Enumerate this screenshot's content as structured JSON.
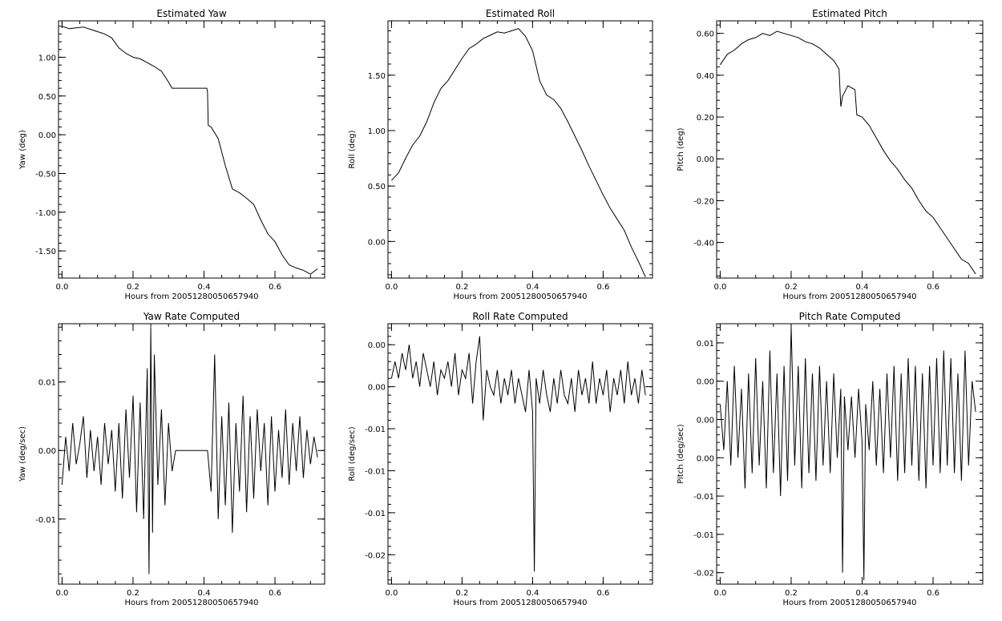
{
  "chart_data": [
    {
      "type": "line",
      "title": "Estimated Yaw",
      "xlabel": "Hours from 20051280050657940",
      "ylabel": "Yaw (deg)",
      "xlim": [
        -0.01,
        0.74
      ],
      "ylim": [
        -1.85,
        1.47
      ],
      "xticks": [
        0.0,
        0.2,
        0.4,
        0.6
      ],
      "xtick_labels": [
        "0.0",
        "0.2",
        "0.4",
        "0.6"
      ],
      "yticks": [
        -1.5,
        -1.0,
        -0.5,
        0.0,
        0.5,
        1.0
      ],
      "ytick_labels": [
        "-1.50",
        "-1.00",
        "-0.50",
        "0.00",
        "0.50",
        "1.00"
      ],
      "series": [
        {
          "x": [
            0.0,
            0.02,
            0.04,
            0.06,
            0.08,
            0.1,
            0.12,
            0.14,
            0.16,
            0.18,
            0.2,
            0.22,
            0.24,
            0.26,
            0.28,
            0.3,
            0.31,
            0.32,
            0.34,
            0.36,
            0.38,
            0.4,
            0.408,
            0.41,
            0.412,
            0.42,
            0.44,
            0.46,
            0.48,
            0.5,
            0.52,
            0.54,
            0.56,
            0.58,
            0.6,
            0.62,
            0.64,
            0.66,
            0.68,
            0.7,
            0.72
          ],
          "y": [
            1.4,
            1.37,
            1.38,
            1.39,
            1.36,
            1.33,
            1.3,
            1.25,
            1.12,
            1.05,
            1.0,
            0.98,
            0.93,
            0.88,
            0.82,
            0.68,
            0.6,
            0.6,
            0.6,
            0.6,
            0.6,
            0.6,
            0.6,
            0.55,
            0.12,
            0.1,
            -0.05,
            -0.4,
            -0.7,
            -0.75,
            -0.82,
            -0.9,
            -1.1,
            -1.28,
            -1.38,
            -1.55,
            -1.68,
            -1.72,
            -1.75,
            -1.8,
            -1.73
          ]
        }
      ]
    },
    {
      "type": "line",
      "title": "Estimated Roll",
      "xlabel": "Hours from 20051280050657940",
      "ylabel": "Roll (deg)",
      "xlim": [
        -0.01,
        0.74
      ],
      "ylim": [
        -0.33,
        1.99
      ],
      "xticks": [
        0.0,
        0.2,
        0.4,
        0.6
      ],
      "xtick_labels": [
        "0.0",
        "0.2",
        "0.4",
        "0.6"
      ],
      "yticks": [
        0.0,
        0.5,
        1.0,
        1.5
      ],
      "ytick_labels": [
        "0.00",
        "0.50",
        "1.00",
        "1.50"
      ],
      "series": [
        {
          "x": [
            0.0,
            0.02,
            0.04,
            0.06,
            0.08,
            0.1,
            0.12,
            0.14,
            0.16,
            0.18,
            0.2,
            0.22,
            0.24,
            0.26,
            0.28,
            0.3,
            0.32,
            0.34,
            0.36,
            0.38,
            0.4,
            0.42,
            0.44,
            0.46,
            0.48,
            0.5,
            0.52,
            0.54,
            0.56,
            0.58,
            0.6,
            0.62,
            0.64,
            0.66,
            0.68,
            0.7,
            0.72
          ],
          "y": [
            0.55,
            0.62,
            0.75,
            0.87,
            0.95,
            1.08,
            1.25,
            1.38,
            1.45,
            1.55,
            1.65,
            1.74,
            1.78,
            1.83,
            1.86,
            1.89,
            1.88,
            1.9,
            1.92,
            1.85,
            1.72,
            1.45,
            1.32,
            1.28,
            1.2,
            1.08,
            0.95,
            0.82,
            0.68,
            0.55,
            0.42,
            0.3,
            0.2,
            0.1,
            -0.05,
            -0.18,
            -0.32
          ]
        }
      ]
    },
    {
      "type": "line",
      "title": "Estimated Pitch",
      "xlabel": "Hours from 20051280050657940",
      "ylabel": "Pitch (deg)",
      "xlim": [
        -0.01,
        0.74
      ],
      "ylim": [
        -0.57,
        0.66
      ],
      "xticks": [
        0.0,
        0.2,
        0.4,
        0.6
      ],
      "xtick_labels": [
        "0.0",
        "0.2",
        "0.4",
        "0.6"
      ],
      "yticks": [
        -0.4,
        -0.2,
        0.0,
        0.2,
        0.4,
        0.6
      ],
      "ytick_labels": [
        "-0.40",
        "-0.20",
        "0.00",
        "0.20",
        "0.40",
        "0.60"
      ],
      "series": [
        {
          "x": [
            0.0,
            0.02,
            0.04,
            0.06,
            0.08,
            0.1,
            0.12,
            0.14,
            0.16,
            0.18,
            0.2,
            0.22,
            0.24,
            0.26,
            0.28,
            0.3,
            0.32,
            0.335,
            0.34,
            0.345,
            0.36,
            0.38,
            0.385,
            0.4,
            0.42,
            0.44,
            0.46,
            0.48,
            0.5,
            0.52,
            0.54,
            0.56,
            0.58,
            0.6,
            0.62,
            0.64,
            0.66,
            0.68,
            0.7,
            0.72
          ],
          "y": [
            0.45,
            0.5,
            0.52,
            0.55,
            0.57,
            0.58,
            0.6,
            0.59,
            0.61,
            0.6,
            0.59,
            0.58,
            0.56,
            0.55,
            0.53,
            0.5,
            0.47,
            0.43,
            0.25,
            0.3,
            0.35,
            0.33,
            0.21,
            0.2,
            0.16,
            0.1,
            0.04,
            -0.01,
            -0.05,
            -0.1,
            -0.14,
            -0.2,
            -0.25,
            -0.28,
            -0.33,
            -0.38,
            -0.43,
            -0.48,
            -0.5,
            -0.55
          ]
        }
      ]
    },
    {
      "type": "line",
      "title": "Yaw Rate Computed",
      "xlabel": "Hours from 20051280050657940",
      "ylabel": "Yaw (deg/sec)",
      "xlim": [
        -0.01,
        0.74
      ],
      "ylim": [
        -0.0195,
        0.0185
      ],
      "xticks": [
        0.0,
        0.2,
        0.4,
        0.6
      ],
      "xtick_labels": [
        "0.0",
        "0.2",
        "0.4",
        "0.6"
      ],
      "yticks": [
        -0.01,
        0.0,
        0.01
      ],
      "ytick_labels": [
        "-0.01",
        "0.00",
        "0.01"
      ],
      "series": [
        {
          "x": [
            0.0,
            0.01,
            0.02,
            0.03,
            0.04,
            0.05,
            0.06,
            0.07,
            0.08,
            0.09,
            0.1,
            0.11,
            0.12,
            0.13,
            0.14,
            0.15,
            0.16,
            0.17,
            0.18,
            0.19,
            0.2,
            0.21,
            0.22,
            0.23,
            0.24,
            0.245,
            0.25,
            0.255,
            0.26,
            0.27,
            0.28,
            0.29,
            0.3,
            0.31,
            0.32,
            0.33,
            0.34,
            0.35,
            0.36,
            0.37,
            0.38,
            0.39,
            0.4,
            0.41,
            0.42,
            0.43,
            0.44,
            0.45,
            0.46,
            0.47,
            0.48,
            0.49,
            0.5,
            0.51,
            0.52,
            0.53,
            0.54,
            0.55,
            0.56,
            0.57,
            0.58,
            0.59,
            0.6,
            0.61,
            0.62,
            0.63,
            0.64,
            0.65,
            0.66,
            0.67,
            0.68,
            0.69,
            0.7,
            0.71,
            0.72
          ],
          "y": [
            -0.005,
            0.002,
            -0.003,
            0.004,
            -0.002,
            0.001,
            0.005,
            -0.004,
            0.003,
            -0.003,
            0.002,
            -0.005,
            0.004,
            -0.002,
            0.003,
            -0.006,
            0.004,
            -0.007,
            0.006,
            -0.004,
            0.008,
            -0.009,
            0.007,
            -0.01,
            0.012,
            -0.018,
            0.018,
            -0.012,
            0.014,
            -0.005,
            0.006,
            -0.008,
            0.004,
            -0.003,
            0.0,
            0.0,
            0.0,
            0.0,
            0.0,
            0.0,
            0.0,
            0.0,
            0.0,
            0.0,
            -0.006,
            0.014,
            -0.01,
            0.005,
            -0.008,
            0.007,
            -0.012,
            0.004,
            -0.006,
            0.008,
            -0.009,
            0.005,
            -0.007,
            0.006,
            -0.003,
            0.004,
            -0.008,
            0.005,
            -0.006,
            0.003,
            -0.004,
            0.006,
            -0.005,
            0.004,
            -0.003,
            0.005,
            -0.004,
            0.003,
            -0.002,
            0.002,
            -0.001
          ]
        }
      ]
    },
    {
      "type": "line",
      "title": "Roll Rate Computed",
      "xlabel": "Hours from 20051280050657940",
      "ylabel": "Roll (deg/sec)",
      "xlim": [
        -0.01,
        0.74
      ],
      "ylim": [
        -0.0235,
        0.0075
      ],
      "xticks": [
        0.0,
        0.2,
        0.4,
        0.6
      ],
      "xtick_labels": [
        "0.0",
        "0.2",
        "0.4",
        "0.6"
      ],
      "yticks": [
        -0.02,
        -0.015,
        -0.01,
        -0.005,
        0.0,
        0.005
      ],
      "ytick_labels": [
        "-0.02",
        "-0.01",
        "-0.01",
        "-0.01",
        "0.00",
        "0.00"
      ],
      "series": [
        {
          "x": [
            0.0,
            0.01,
            0.02,
            0.03,
            0.04,
            0.05,
            0.06,
            0.07,
            0.08,
            0.09,
            0.1,
            0.11,
            0.12,
            0.13,
            0.14,
            0.15,
            0.16,
            0.17,
            0.18,
            0.19,
            0.2,
            0.21,
            0.22,
            0.23,
            0.24,
            0.25,
            0.26,
            0.27,
            0.28,
            0.29,
            0.3,
            0.31,
            0.32,
            0.33,
            0.34,
            0.35,
            0.36,
            0.37,
            0.38,
            0.39,
            0.4,
            0.405,
            0.41,
            0.42,
            0.43,
            0.44,
            0.45,
            0.46,
            0.47,
            0.48,
            0.49,
            0.5,
            0.51,
            0.52,
            0.53,
            0.54,
            0.55,
            0.56,
            0.57,
            0.58,
            0.59,
            0.6,
            0.61,
            0.62,
            0.63,
            0.64,
            0.65,
            0.66,
            0.67,
            0.68,
            0.69,
            0.7,
            0.71,
            0.72
          ],
          "y": [
            0.001,
            0.003,
            0.001,
            0.004,
            0.002,
            0.005,
            0.001,
            0.003,
            0.0,
            0.004,
            0.002,
            0.0,
            0.003,
            -0.001,
            0.002,
            0.001,
            0.003,
            0.0,
            0.004,
            -0.001,
            0.002,
            0.001,
            0.004,
            -0.002,
            0.003,
            0.006,
            -0.004,
            0.002,
            0.0,
            -0.001,
            0.002,
            -0.002,
            0.001,
            -0.001,
            0.002,
            -0.002,
            0.001,
            -0.001,
            -0.003,
            0.002,
            -0.003,
            -0.022,
            0.001,
            -0.002,
            0.002,
            -0.001,
            -0.003,
            0.001,
            -0.002,
            0.002,
            -0.001,
            -0.002,
            0.001,
            -0.003,
            0.002,
            -0.001,
            0.001,
            -0.002,
            0.003,
            -0.002,
            0.001,
            -0.001,
            0.002,
            -0.003,
            0.001,
            -0.001,
            0.002,
            -0.002,
            0.003,
            -0.001,
            0.001,
            -0.002,
            0.002,
            -0.001
          ]
        }
      ]
    },
    {
      "type": "line",
      "title": "Pitch Rate Computed",
      "xlabel": "Hours from 20051280050657940",
      "ylabel": "Pitch (deg/sec)",
      "xlim": [
        -0.01,
        0.74
      ],
      "ylim": [
        -0.0215,
        0.0125
      ],
      "xticks": [
        0.0,
        0.2,
        0.4,
        0.6
      ],
      "xtick_labels": [
        "0.0",
        "0.2",
        "0.4",
        "0.6"
      ],
      "yticks": [
        -0.02,
        -0.015,
        -0.01,
        -0.005,
        0.0,
        0.005,
        0.01
      ],
      "ytick_labels": [
        "-0.02",
        "-0.01",
        "-0.01",
        "0.00",
        "0.00",
        "0.00",
        "0.01"
      ],
      "series": [
        {
          "x": [
            0.0,
            0.01,
            0.02,
            0.03,
            0.04,
            0.05,
            0.06,
            0.07,
            0.08,
            0.09,
            0.1,
            0.11,
            0.12,
            0.13,
            0.14,
            0.15,
            0.16,
            0.17,
            0.18,
            0.19,
            0.2,
            0.21,
            0.22,
            0.23,
            0.24,
            0.25,
            0.26,
            0.27,
            0.28,
            0.29,
            0.3,
            0.31,
            0.32,
            0.33,
            0.34,
            0.345,
            0.35,
            0.36,
            0.37,
            0.38,
            0.39,
            0.4,
            0.405,
            0.41,
            0.42,
            0.43,
            0.44,
            0.45,
            0.46,
            0.47,
            0.48,
            0.49,
            0.5,
            0.51,
            0.52,
            0.53,
            0.54,
            0.55,
            0.56,
            0.57,
            0.58,
            0.59,
            0.6,
            0.61,
            0.62,
            0.63,
            0.64,
            0.65,
            0.66,
            0.67,
            0.68,
            0.69,
            0.7,
            0.71,
            0.72
          ],
          "y": [
            0.002,
            -0.004,
            0.005,
            -0.006,
            0.007,
            -0.005,
            0.004,
            -0.009,
            0.006,
            -0.007,
            0.008,
            -0.006,
            0.005,
            -0.009,
            0.009,
            -0.007,
            0.006,
            -0.01,
            0.007,
            -0.008,
            0.012,
            -0.006,
            0.007,
            -0.009,
            0.008,
            -0.007,
            0.006,
            -0.008,
            0.007,
            -0.006,
            0.005,
            -0.007,
            0.006,
            -0.005,
            0.004,
            -0.02,
            0.003,
            -0.004,
            0.003,
            -0.005,
            0.004,
            -0.003,
            -0.021,
            0.002,
            -0.004,
            0.005,
            -0.006,
            0.004,
            -0.007,
            0.006,
            -0.005,
            0.007,
            -0.008,
            0.006,
            -0.007,
            0.008,
            -0.006,
            0.007,
            -0.008,
            0.006,
            -0.009,
            0.007,
            -0.006,
            0.008,
            -0.007,
            0.009,
            -0.006,
            0.008,
            -0.007,
            0.006,
            -0.008,
            0.009,
            -0.006,
            0.005,
            0.001
          ]
        }
      ]
    }
  ]
}
